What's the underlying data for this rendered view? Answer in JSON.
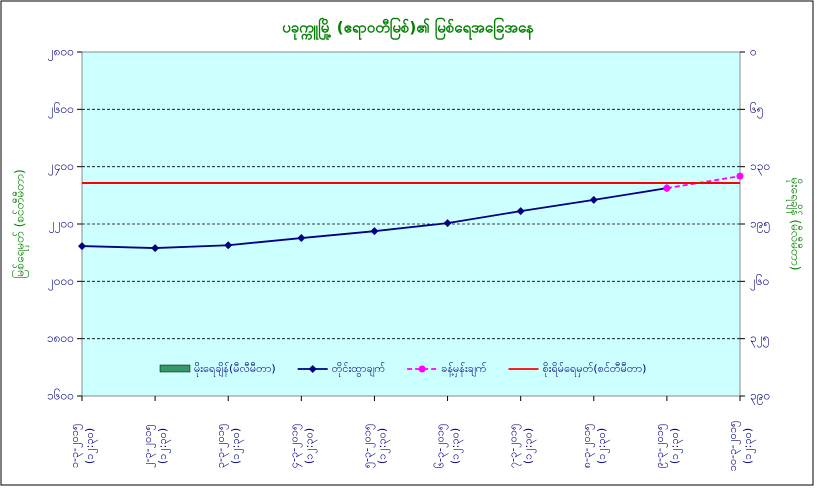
{
  "chart_data": {
    "type": "line",
    "title": "ပခုက္ကူမြို့ (ဧရာဝတီမြစ်)၏ မြစ်ရေအခြေအနေ",
    "y_label": "မြစ်ရေမှတ် (စင်တီမီတာ)",
    "y2_label": "မိုးရေချိန် (မီလီမီတာ)",
    "categories": [
      "၁-၃-၂၀၁၅",
      "၂-၃-၂၀၁၅",
      "၃-၃-၂၀၁၅",
      "၄-၃-၂၀၁၅",
      "၅-၃-၂၀၁၅",
      "၆-၃-၂၀၁၅",
      "၇-၃-၂၀၁၅",
      "၈-၃-၂၀၁၅",
      "၉-၃-၂၀၁၅",
      "၁၀-၃-၂၀၁၅"
    ],
    "category_time": "(၁၂:၃၀)",
    "ylim": [
      1600,
      2800
    ],
    "yticks": [
      {
        "value": 1600,
        "label": "၁၆၀၀"
      },
      {
        "value": 1800,
        "label": "၁၈၀၀"
      },
      {
        "value": 2000,
        "label": "၂၀၀၀"
      },
      {
        "value": 2200,
        "label": "၂၂၀၀"
      },
      {
        "value": 2400,
        "label": "၂၄၀၀"
      },
      {
        "value": 2600,
        "label": "၂၆၀၀"
      },
      {
        "value": 2800,
        "label": "၂၈၀၀"
      }
    ],
    "y2lim": [
      390,
      0
    ],
    "y2ticks": [
      {
        "value": 0,
        "label": "၀"
      },
      {
        "value": 65,
        "label": "၆၅"
      },
      {
        "value": 130,
        "label": "၁၃၀"
      },
      {
        "value": 195,
        "label": "၁၉၅"
      },
      {
        "value": 260,
        "label": "၂၆၀"
      },
      {
        "value": 325,
        "label": "၃၂၅"
      },
      {
        "value": 390,
        "label": "၃၉၀"
      }
    ],
    "grid": true,
    "series": [
      {
        "name": "မိုးရေချိန်(မီလီမီတာ)",
        "color": "#339966",
        "kind": "bar",
        "axis": "y2",
        "values": [
          0,
          0,
          0,
          0,
          0,
          0,
          0,
          0,
          0,
          0
        ]
      },
      {
        "name": "တိုင်းထွာချက်",
        "color": "#000080",
        "kind": "line",
        "values": [
          2123,
          2116,
          2126,
          2151,
          2175,
          2203,
          2245,
          2284,
          2325,
          null
        ]
      },
      {
        "name": "ခန့်မှန်းချက်",
        "color": "#ff00ff",
        "kind": "dashed",
        "values": [
          null,
          null,
          null,
          null,
          null,
          null,
          null,
          null,
          2325,
          2367
        ]
      },
      {
        "name": "စိုးရိမ်ရေမှတ်(စင်တီမီတာ)",
        "color": "#ff0000",
        "kind": "level",
        "values": [
          2343,
          2343,
          2343,
          2343,
          2343,
          2343,
          2343,
          2343,
          2343,
          2343
        ]
      }
    ]
  }
}
